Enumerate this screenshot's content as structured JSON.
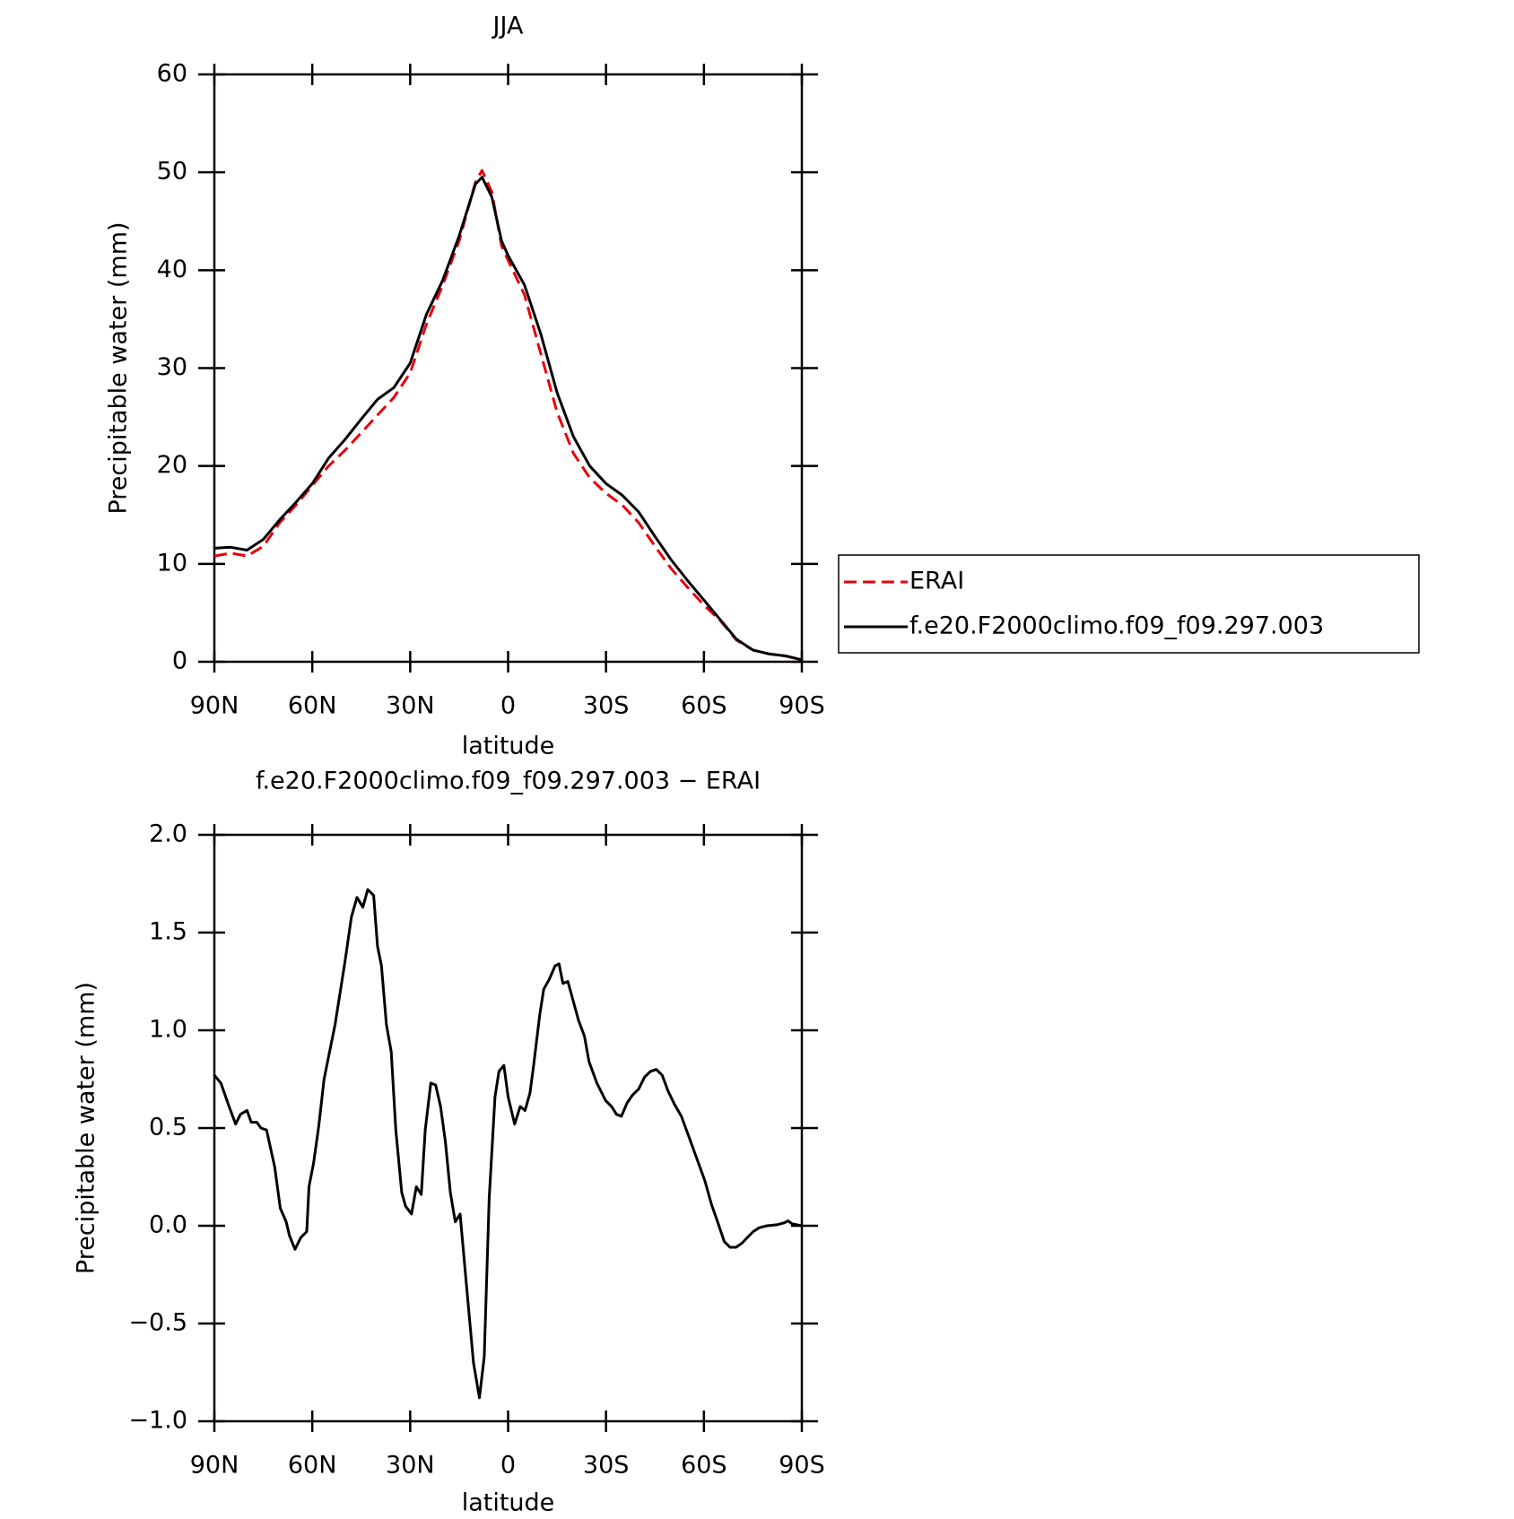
{
  "chart_data": [
    {
      "type": "line",
      "title": "JJA",
      "x_label": "latitude",
      "y_label": "Precipitable water (mm)",
      "x": [
        90,
        85,
        80,
        75,
        70,
        65,
        60,
        55,
        50,
        45,
        40,
        35,
        30,
        25,
        20,
        15,
        10,
        8,
        5,
        2,
        0,
        -5,
        -10,
        -15,
        -20,
        -25,
        -30,
        -35,
        -40,
        -45,
        -50,
        -55,
        -60,
        -65,
        -70,
        -75,
        -80,
        -85,
        -90
      ],
      "series": [
        {
          "name": "ERAI",
          "color": "#e8000b",
          "dash": true,
          "values": [
            10.8,
            11.1,
            10.8,
            11.8,
            14.2,
            16,
            18,
            20,
            21.6,
            23.4,
            25.2,
            27,
            29.5,
            34.5,
            38.5,
            43,
            49,
            50.2,
            48,
            42.5,
            41,
            37.5,
            31.5,
            25.5,
            21.3,
            18.8,
            17.2,
            16,
            14.2,
            11.8,
            9.5,
            7.6,
            5.8,
            4.2,
            2.2,
            1.2,
            0.8,
            0.6,
            0.2
          ]
        },
        {
          "name": "f.e20.F2000climo.f09_f09.297.003",
          "color": "#000000",
          "dash": false,
          "values": [
            11.6,
            11.7,
            11.4,
            12.5,
            14.5,
            16.3,
            18.2,
            20.8,
            22.7,
            24.8,
            26.8,
            28,
            30.5,
            35.5,
            39,
            43.5,
            48.8,
            49.5,
            47.5,
            43,
            41.5,
            38.5,
            33.5,
            27.5,
            23,
            20,
            18.2,
            17,
            15.3,
            12.8,
            10.4,
            8.3,
            6.3,
            4.3,
            2.3,
            1.2,
            0.8,
            0.6,
            0.2
          ]
        }
      ],
      "xlim": [
        90,
        -90
      ],
      "xticks": [
        {
          "value": 90,
          "label": "90N"
        },
        {
          "value": 60,
          "label": "60N"
        },
        {
          "value": 30,
          "label": "30N"
        },
        0,
        {
          "value": -30,
          "label": "30S"
        },
        {
          "value": -60,
          "label": "60S"
        },
        {
          "value": -90,
          "label": "90S"
        }
      ],
      "ylim": [
        0,
        60
      ],
      "yticks": [
        0,
        10,
        20,
        30,
        40,
        50,
        60
      ],
      "legend": "right"
    },
    {
      "type": "line",
      "title": "f.e20.F2000climo.f09_f09.297.003 − ERAI",
      "x_label": "latitude",
      "y_label": "Precipitable water (mm)",
      "x": [
        90,
        88,
        85.5,
        83.5,
        82,
        80,
        78.7,
        77,
        75.7,
        74,
        71.5,
        69.8,
        68,
        67,
        65.3,
        63.5,
        61.7,
        61,
        59.6,
        58,
        56.4,
        53,
        50,
        48,
        46.3,
        44.5,
        43,
        41.2,
        40,
        38.8,
        37.3,
        35.8,
        34.4,
        32.6,
        31.4,
        29.6,
        28.1,
        26.6,
        25.4,
        23.7,
        22.2,
        20.7,
        19.2,
        17.7,
        16.2,
        14.7,
        12.9,
        10.6,
        8.8,
        7.3,
        5.8,
        4,
        2.8,
        1.3,
        0,
        -2,
        -3.7,
        -5.2,
        -6.7,
        -7.9,
        -9.7,
        -10.9,
        -12.6,
        -14.4,
        -15.6,
        -16.8,
        -18.3,
        -19.8,
        -21.6,
        -23.4,
        -24.8,
        -27.2,
        -29.9,
        -31.7,
        -33.2,
        -34.7,
        -36.5,
        -38.2,
        -40,
        -41.8,
        -43.6,
        -45.4,
        -47.2,
        -49,
        -51,
        -53.1,
        -55.5,
        -57.9,
        -60.3,
        -62.3,
        -64.4,
        -66.2,
        -68,
        -69.8,
        -71.6,
        -73.3,
        -75.1,
        -76.9,
        -79.3,
        -82.3,
        -84.6,
        -85.8,
        -87,
        -90
      ],
      "series": [
        {
          "name": "f.e20.F2000climo.f09_f09.297.003 − ERAI",
          "color": "#000000",
          "dash": false,
          "values": [
            0.77,
            0.73,
            0.61,
            0.52,
            0.57,
            0.59,
            0.53,
            0.53,
            0.5,
            0.49,
            0.3,
            0.09,
            0.02,
            -0.05,
            -0.12,
            -0.06,
            -0.03,
            0.2,
            0.32,
            0.51,
            0.75,
            1.03,
            1.35,
            1.58,
            1.68,
            1.63,
            1.72,
            1.69,
            1.43,
            1.33,
            1.03,
            0.89,
            0.49,
            0.17,
            0.1,
            0.06,
            0.2,
            0.16,
            0.49,
            0.73,
            0.72,
            0.61,
            0.43,
            0.17,
            0.02,
            0.06,
            -0.28,
            -0.7,
            -0.88,
            -0.67,
            0.14,
            0.66,
            0.79,
            0.82,
            0.66,
            0.52,
            0.61,
            0.59,
            0.68,
            0.83,
            1.08,
            1.21,
            1.26,
            1.33,
            1.34,
            1.24,
            1.25,
            1.16,
            1.05,
            0.97,
            0.84,
            0.73,
            0.64,
            0.61,
            0.57,
            0.56,
            0.63,
            0.67,
            0.7,
            0.76,
            0.79,
            0.8,
            0.77,
            0.69,
            0.62,
            0.56,
            0.45,
            0.34,
            0.23,
            0.11,
            0.01,
            -0.08,
            -0.11,
            -0.11,
            -0.09,
            -0.06,
            -0.03,
            -0.01,
            0,
            0.005,
            0.015,
            0.025,
            0.01,
            0
          ]
        }
      ],
      "xlim": [
        90,
        -90
      ],
      "xticks": [
        {
          "value": 90,
          "label": "90N"
        },
        {
          "value": 60,
          "label": "60N"
        },
        {
          "value": 30,
          "label": "30N"
        },
        0,
        {
          "value": -30,
          "label": "30S"
        },
        {
          "value": -60,
          "label": "60S"
        },
        {
          "value": -90,
          "label": "90S"
        }
      ],
      "ylim": [
        -1,
        2
      ],
      "yticks": [
        {
          "value": -1,
          "label": "−1.0"
        },
        {
          "value": -0.5,
          "label": "−0.5"
        },
        {
          "value": 0,
          "label": "0.0"
        },
        {
          "value": 0.5,
          "label": "0.5"
        },
        {
          "value": 1,
          "label": "1.0"
        },
        {
          "value": 1.5,
          "label": "1.5"
        },
        {
          "value": 2,
          "label": "2.0"
        }
      ],
      "legend": "none"
    }
  ]
}
